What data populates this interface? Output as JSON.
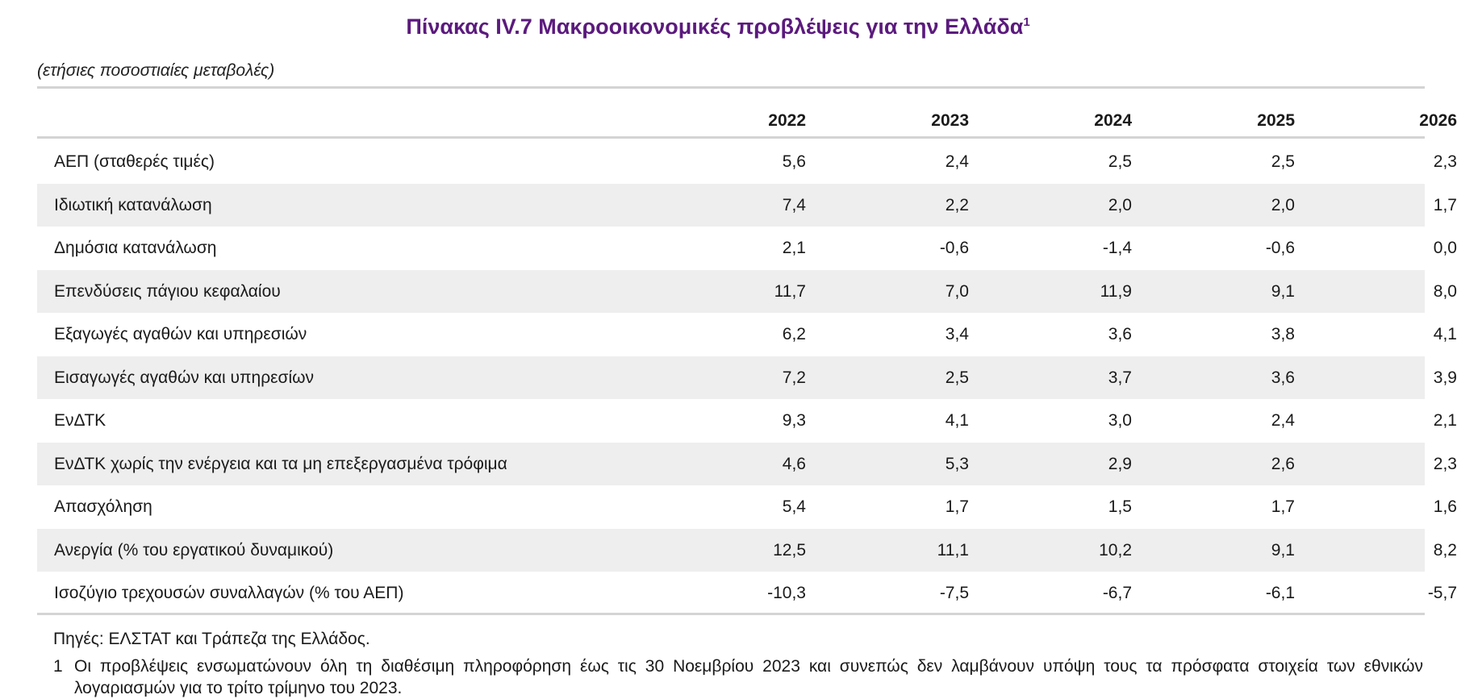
{
  "title": "Πίνακας IV.7 Μακροοικονομικές προβλέψεις για την Ελλάδα",
  "title_sup": "1",
  "subtitle": "(ετήσιες ποσοστιαίες μεταβολές)",
  "columns": [
    "2022",
    "2023",
    "2024",
    "2025",
    "2026"
  ],
  "rows": [
    {
      "label": "ΑΕΠ (σταθερές τιμές)",
      "values": [
        "5,6",
        "2,4",
        "2,5",
        "2,5",
        "2,3"
      ]
    },
    {
      "label": "Ιδιωτική κατανάλωση",
      "values": [
        "7,4",
        "2,2",
        "2,0",
        "2,0",
        "1,7"
      ]
    },
    {
      "label": "Δημόσια κατανάλωση",
      "values": [
        "2,1",
        "-0,6",
        "-1,4",
        "-0,6",
        "0,0"
      ]
    },
    {
      "label": "Επενδύσεις πάγιου κεφαλαίου",
      "values": [
        "11,7",
        "7,0",
        "11,9",
        "9,1",
        "8,0"
      ]
    },
    {
      "label": "Εξαγωγές αγαθών και υπηρεσιών",
      "values": [
        "6,2",
        "3,4",
        "3,6",
        "3,8",
        "4,1"
      ]
    },
    {
      "label": "Εισαγωγές αγαθών και υπηρεσίων",
      "values": [
        "7,2",
        "2,5",
        "3,7",
        "3,6",
        "3,9"
      ]
    },
    {
      "label": "ΕνΔΤΚ",
      "values": [
        "9,3",
        "4,1",
        "3,0",
        "2,4",
        "2,1"
      ]
    },
    {
      "label": "ΕνΔΤΚ χωρίς την ενέργεια και τα μη επεξεργασμένα τρόφιμα",
      "values": [
        "4,6",
        "5,3",
        "2,9",
        "2,6",
        "2,3"
      ]
    },
    {
      "label": "Απασχόληση",
      "values": [
        "5,4",
        "1,7",
        "1,5",
        "1,7",
        "1,6"
      ]
    },
    {
      "label": "Ανεργία (% του εργατικού δυναμικού)",
      "values": [
        "12,5",
        "11,1",
        "10,2",
        "9,1",
        "8,2"
      ]
    },
    {
      "label": "Ισοζύγιο τρεχουσών συναλλαγών (% του ΑΕΠ)",
      "values": [
        "-10,3",
        "-7,5",
        "-6,7",
        "-6,1",
        "-5,7"
      ]
    }
  ],
  "source": "Πηγές: ΕΛΣΤΑΤ και Τράπεζα της Ελλάδος.",
  "footnote_num": "1",
  "footnote": "Οι προβλέψεις ενσωματώνουν όλη τη διαθέσιμη πληροφόρηση έως τις 30 Νοεμβρίου 2023 και συνεπώς δεν λαμβάνουν υπόψη τους τα πρόσφατα στοιχεία των εθνικών λογαριασμών για το τρίτο τρίμηνο του 2023.",
  "colors": {
    "title": "#5b1a7d",
    "row_stripe": "#eeeeee",
    "rule": "#d4d4d4"
  }
}
